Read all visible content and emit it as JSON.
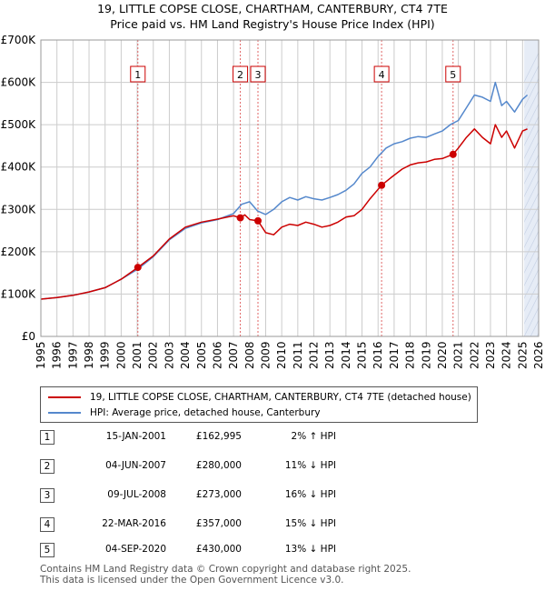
{
  "title_line1": "19, LITTLE COPSE CLOSE, CHARTHAM, CANTERBURY, CT4 7TE",
  "title_line2": "Price paid vs. HM Land Registry's House Price Index (HPI)",
  "legend": {
    "property_label": "19, LITTLE COPSE CLOSE, CHARTHAM, CANTERBURY, CT4 7TE (detached house)",
    "hpi_label": "HPI: Average price, detached house, Canterbury"
  },
  "colors": {
    "property": "#cc0000",
    "hpi": "#5588cc",
    "shade": "#e6ecf6",
    "grid": "#cccccc",
    "marker_line": "#e06666"
  },
  "sales": [
    {
      "num": "1",
      "date": "15-JAN-2001",
      "price": "£162,995",
      "hpi": "2% ↑ HPI"
    },
    {
      "num": "2",
      "date": "04-JUN-2007",
      "price": "£280,000",
      "hpi": "11% ↓ HPI"
    },
    {
      "num": "3",
      "date": "09-JUL-2008",
      "price": "£273,000",
      "hpi": "16% ↓ HPI"
    },
    {
      "num": "4",
      "date": "22-MAR-2016",
      "price": "£357,000",
      "hpi": "15% ↓ HPI"
    },
    {
      "num": "5",
      "date": "04-SEP-2020",
      "price": "£430,000",
      "hpi": "13% ↓ HPI"
    }
  ],
  "footer_line1": "Contains HM Land Registry data © Crown copyright and database right 2025.",
  "footer_line2": "This data is licensed under the Open Government Licence v3.0.",
  "chart_data": {
    "type": "line",
    "title": "19, LITTLE COPSE CLOSE, CHARTHAM, CANTERBURY, CT4 7TE — Price paid vs. HM Land Registry's House Price Index (HPI)",
    "xlabel": "",
    "ylabel": "",
    "xlim": [
      1995,
      2026
    ],
    "ylim": [
      0,
      700000
    ],
    "x_ticks": [
      1995,
      1996,
      1997,
      1998,
      1999,
      2000,
      2001,
      2002,
      2003,
      2004,
      2005,
      2006,
      2007,
      2008,
      2009,
      2010,
      2011,
      2012,
      2013,
      2014,
      2015,
      2016,
      2017,
      2018,
      2019,
      2020,
      2021,
      2022,
      2023,
      2024,
      2025,
      2026
    ],
    "y_ticks": [
      0,
      100000,
      200000,
      300000,
      400000,
      500000,
      600000,
      700000
    ],
    "y_tick_labels": [
      "£0",
      "£100K",
      "£200K",
      "£300K",
      "£400K",
      "£500K",
      "£600K",
      "£700K"
    ],
    "grid": true,
    "legend_position": "below",
    "future_shading_start": 2025.1,
    "series": [
      {
        "name": "19, LITTLE COPSE CLOSE, CHARTHAM, CANTERBURY, CT4 7TE (detached house)",
        "x": [
          1995.0,
          1996.0,
          1997.0,
          1998.0,
          1999.0,
          2000.0,
          2001.04,
          2002.0,
          2003.0,
          2004.0,
          2005.0,
          2006.0,
          2007.0,
          2007.42,
          2007.7,
          2008.0,
          2008.52,
          2009.0,
          2009.5,
          2010.0,
          2010.5,
          2011.0,
          2011.5,
          2012.0,
          2012.5,
          2013.0,
          2013.5,
          2014.0,
          2014.5,
          2015.0,
          2015.5,
          2016.22,
          2016.8,
          2017.5,
          2018.0,
          2018.5,
          2019.0,
          2019.5,
          2020.0,
          2020.67,
          2021.0,
          2021.5,
          2022.0,
          2022.5,
          2023.0,
          2023.3,
          2023.7,
          2024.0,
          2024.5,
          2025.0,
          2025.3
        ],
        "values": [
          88000,
          92000,
          97000,
          105000,
          115000,
          135000,
          162995,
          190000,
          230000,
          258000,
          270000,
          277000,
          285000,
          280000,
          287000,
          276000,
          273000,
          245000,
          240000,
          258000,
          265000,
          262000,
          270000,
          265000,
          258000,
          262000,
          270000,
          282000,
          285000,
          300000,
          325000,
          357000,
          375000,
          395000,
          405000,
          410000,
          412000,
          418000,
          420000,
          430000,
          445000,
          470000,
          490000,
          470000,
          455000,
          500000,
          470000,
          485000,
          445000,
          485000,
          490000
        ]
      },
      {
        "name": "HPI: Average price, detached house, Canterbury",
        "x": [
          1995.0,
          1996.0,
          1997.0,
          1998.0,
          1999.0,
          2000.0,
          2001.0,
          2002.0,
          2003.0,
          2004.0,
          2005.0,
          2006.0,
          2007.0,
          2007.5,
          2008.0,
          2008.5,
          2009.0,
          2009.5,
          2010.0,
          2010.5,
          2011.0,
          2011.5,
          2012.0,
          2012.5,
          2013.0,
          2013.5,
          2014.0,
          2014.5,
          2015.0,
          2015.5,
          2016.0,
          2016.5,
          2017.0,
          2017.5,
          2018.0,
          2018.5,
          2019.0,
          2019.5,
          2020.0,
          2020.5,
          2021.0,
          2021.5,
          2022.0,
          2022.5,
          2023.0,
          2023.3,
          2023.7,
          2024.0,
          2024.5,
          2025.0,
          2025.3
        ],
        "values": [
          88000,
          92000,
          97000,
          105000,
          115000,
          135000,
          158000,
          188000,
          228000,
          255000,
          268000,
          276000,
          290000,
          312000,
          318000,
          296000,
          288000,
          300000,
          318000,
          328000,
          322000,
          330000,
          325000,
          322000,
          328000,
          335000,
          345000,
          360000,
          385000,
          400000,
          425000,
          445000,
          455000,
          460000,
          468000,
          472000,
          470000,
          478000,
          485000,
          500000,
          510000,
          540000,
          570000,
          565000,
          555000,
          600000,
          545000,
          555000,
          530000,
          560000,
          570000
        ]
      }
    ],
    "sale_markers": [
      {
        "num": "1",
        "x": 2001.04,
        "y": 162995
      },
      {
        "num": "2",
        "x": 2007.42,
        "y": 280000
      },
      {
        "num": "3",
        "x": 2008.52,
        "y": 273000
      },
      {
        "num": "4",
        "x": 2016.22,
        "y": 357000
      },
      {
        "num": "5",
        "x": 2020.67,
        "y": 430000
      }
    ]
  }
}
